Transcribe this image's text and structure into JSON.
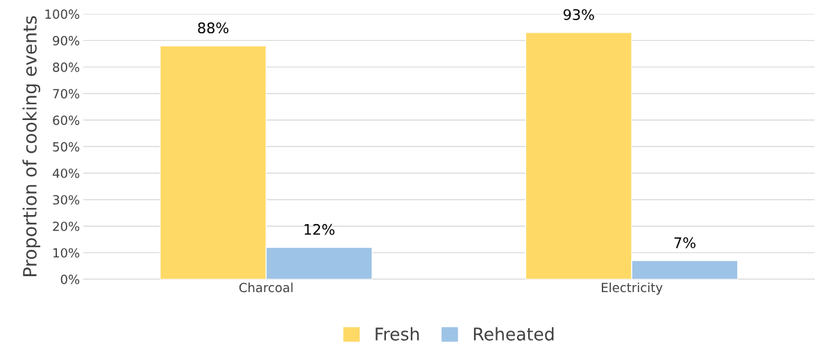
{
  "chart_data": {
    "type": "bar",
    "ylabel": "Proportion of cooking events",
    "categories": [
      "Charcoal",
      "Electricity"
    ],
    "series": [
      {
        "name": "Fresh",
        "color": "#ffd966",
        "values": [
          88,
          93
        ],
        "value_labels": [
          "88%",
          "93%"
        ]
      },
      {
        "name": "Reheated",
        "color": "#9dc3e6",
        "values": [
          12,
          7
        ],
        "value_labels": [
          "12%",
          "7%"
        ]
      }
    ],
    "ylim": [
      0,
      100
    ],
    "yticks": [
      {
        "value": 0,
        "label": "0%"
      },
      {
        "value": 10,
        "label": "10%"
      },
      {
        "value": 20,
        "label": "20%"
      },
      {
        "value": 30,
        "label": "30%"
      },
      {
        "value": 40,
        "label": "40%"
      },
      {
        "value": 50,
        "label": "50%"
      },
      {
        "value": 60,
        "label": "60%"
      },
      {
        "value": 70,
        "label": "70%"
      },
      {
        "value": 80,
        "label": "80%"
      },
      {
        "value": 90,
        "label": "90%"
      },
      {
        "value": 100,
        "label": "100%"
      }
    ],
    "grid": "y",
    "legend": "bottom"
  }
}
